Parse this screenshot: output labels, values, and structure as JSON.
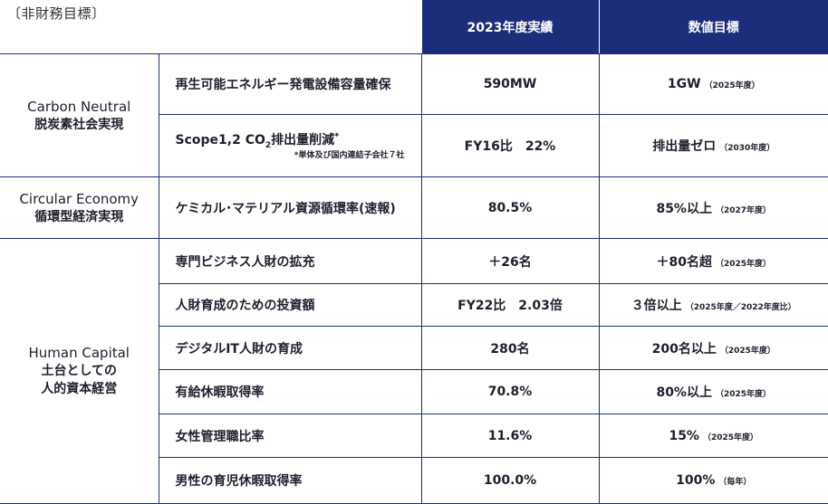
{
  "caption": "〔非財務目標〕",
  "headers": {
    "result": "2023年度実績",
    "target": "数値目標"
  },
  "categories": {
    "carbon": {
      "en": "Carbon Neutral",
      "jp": "脱炭素社会実現"
    },
    "circular": {
      "en": "Circular Economy",
      "jp": "循環型経済実現"
    },
    "human": {
      "en": "Human Capital",
      "jp1": "土台としての",
      "jp2": "人的資本経営"
    }
  },
  "rows": [
    {
      "item": "再生可能エネルギー発電設備容量確保",
      "result": "590MW",
      "target": "1GW",
      "note": "（2025年度）"
    },
    {
      "item_pre": "Scope1,2 CO",
      "item_sub": "2",
      "item_post": "排出量削減",
      "item_sup": "*",
      "item_note": "*単体及び国内連結子会社７社",
      "result": "FY16比　22%",
      "target": "排出量ゼロ",
      "note": "（2030年度）"
    },
    {
      "item": "ケミカル･マテリアル資源循環率(速報)",
      "result": "80.5%",
      "target": "85%以上",
      "note": "（2027年度）"
    },
    {
      "item": "専門ビジネス人財の拡充",
      "result": "＋26名",
      "target": "＋80名超",
      "note": "（2025年度）"
    },
    {
      "item": "人財育成のための投資額",
      "result": "FY22比　2.03倍",
      "target": "３倍以上",
      "note": "（2025年度／2022年度比）"
    },
    {
      "item": "デジタルIT人財の育成",
      "result": "280名",
      "target": "200名以上",
      "note": "（2025年度）"
    },
    {
      "item": "有給休暇取得率",
      "result": "70.8%",
      "target": "80%以上",
      "note": "（2025年度）"
    },
    {
      "item": "女性管理職比率",
      "result": "11.6%",
      "target": "15%",
      "note": "（2025年度）"
    },
    {
      "item": "男性の育児休暇取得率",
      "result": "100.0%",
      "target": "100%",
      "note": "（毎年）"
    }
  ]
}
